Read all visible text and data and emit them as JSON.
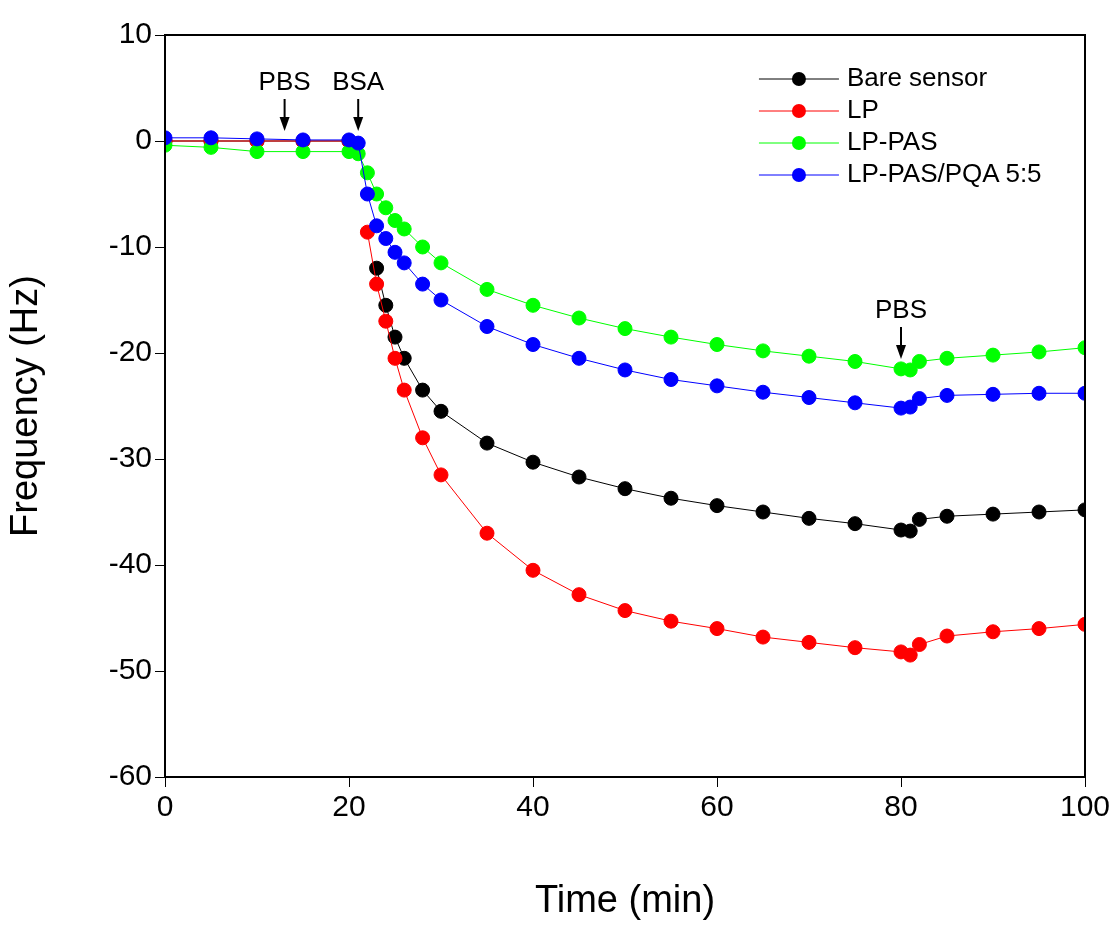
{
  "chart_data": {
    "type": "line",
    "xlabel": "Time (min)",
    "ylabel": "Frequency (Hz)",
    "x": [
      0,
      5,
      10,
      15,
      20,
      21,
      22,
      23,
      24,
      25,
      26,
      28,
      30,
      35,
      40,
      45,
      50,
      55,
      60,
      65,
      70,
      75,
      80,
      81,
      82,
      85,
      90,
      95,
      100
    ],
    "series": [
      {
        "name": "Bare sensor",
        "color": "#000000",
        "values": [
          0,
          0,
          0,
          0,
          0,
          null,
          null,
          -12,
          -15.5,
          -18.5,
          -20.5,
          -23.5,
          -25.5,
          -28.5,
          -30.3,
          -31.7,
          -32.8,
          -33.7,
          -34.4,
          -35.0,
          -35.6,
          -36.1,
          -36.7,
          -36.8,
          -35.7,
          -35.4,
          -35.2,
          -35.0,
          -34.8
        ]
      },
      {
        "name": "LP",
        "color": "#ff0000",
        "values": [
          0,
          0,
          0,
          0,
          0,
          null,
          -8.6,
          -13.5,
          -17,
          -20.5,
          -23.5,
          -28,
          -31.5,
          -37,
          -40.5,
          -42.8,
          -44.3,
          -45.3,
          -46.0,
          -46.8,
          -47.3,
          -47.8,
          -48.2,
          -48.5,
          -47.5,
          -46.7,
          -46.3,
          -46.0,
          -45.6
        ]
      },
      {
        "name": "LP-PAS",
        "color": "#00ff00",
        "values": [
          -0.4,
          -0.6,
          -1.0,
          -1.0,
          -1.0,
          -1.2,
          -3,
          -5,
          -6.3,
          -7.5,
          -8.3,
          -10,
          -11.5,
          -14,
          -15.5,
          -16.7,
          -17.7,
          -18.5,
          -19.2,
          -19.8,
          -20.3,
          -20.8,
          -21.5,
          -21.6,
          -20.8,
          -20.5,
          -20.2,
          -19.9,
          -19.5
        ]
      },
      {
        "name": "LP-PAS/PQA 5:5",
        "color": "#0000ff",
        "values": [
          0.3,
          0.3,
          0.2,
          0.1,
          0.1,
          -0.2,
          -5,
          -8,
          -9.2,
          -10.5,
          -11.5,
          -13.5,
          -15,
          -17.5,
          -19.2,
          -20.5,
          -21.6,
          -22.5,
          -23.1,
          -23.7,
          -24.2,
          -24.7,
          -25.2,
          -25.1,
          -24.3,
          -24.0,
          -23.9,
          -23.8,
          -23.8
        ]
      }
    ],
    "xlim": [
      0,
      100
    ],
    "xticks": [
      0,
      20,
      40,
      60,
      80,
      100
    ],
    "ylim": [
      -60,
      10
    ],
    "yticks": [
      -60,
      -50,
      -40,
      -30,
      -20,
      -10,
      0,
      10
    ],
    "grid": false,
    "legend": "top right",
    "marker": "circle",
    "line_style": "solid",
    "annotations": [
      {
        "text": "PBS",
        "x": 13,
        "y": 0
      },
      {
        "text": "BSA",
        "x": 21,
        "y": 0
      },
      {
        "text": "PBS",
        "x": 80,
        "y": -21.5
      }
    ]
  }
}
